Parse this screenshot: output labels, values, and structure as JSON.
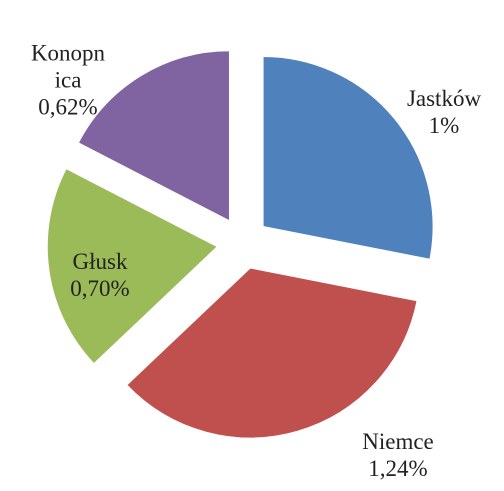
{
  "chart_data": {
    "type": "pie",
    "categories": [
      "Jastków",
      "Niemce",
      "Głusk",
      "Konopnica"
    ],
    "values": [
      1,
      1.24,
      0.7,
      0.62
    ],
    "value_labels": [
      "1%",
      "1,24%",
      "0,70%",
      "0,62%"
    ],
    "colors": [
      "#4f81bd",
      "#c0504d",
      "#9bbb59",
      "#8064a2"
    ],
    "exploded": true
  }
}
